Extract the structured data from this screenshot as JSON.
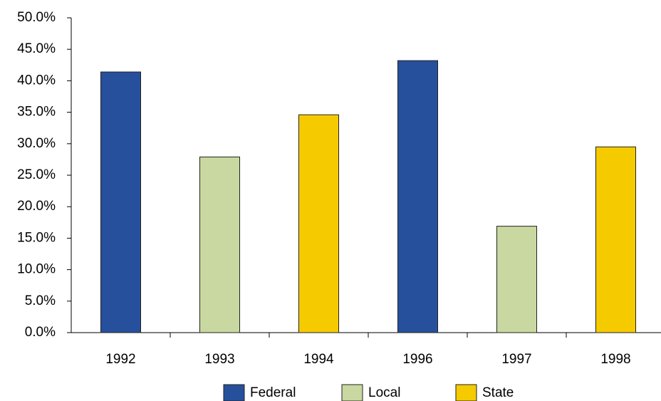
{
  "chart_data": {
    "type": "bar",
    "categories": [
      "1992",
      "1993",
      "1994",
      "1996",
      "1997",
      "1998"
    ],
    "series": [
      {
        "name": "Federal",
        "color": "#26509c",
        "values": [
          41.4,
          null,
          null,
          43.2,
          null,
          null
        ]
      },
      {
        "name": "Local",
        "color": "#c8d8a0",
        "values": [
          null,
          27.9,
          null,
          null,
          16.9,
          null
        ]
      },
      {
        "name": "State",
        "color": "#f5cb00",
        "values": [
          null,
          null,
          34.6,
          null,
          null,
          29.5
        ]
      }
    ],
    "ylim": [
      0,
      50
    ],
    "yticks": [
      {
        "value": 0,
        "label": "0.0%"
      },
      {
        "value": 5,
        "label": "5.0%"
      },
      {
        "value": 10,
        "label": "10.0%"
      },
      {
        "value": 15,
        "label": "15.0%"
      },
      {
        "value": 20,
        "label": "20.0%"
      },
      {
        "value": 25,
        "label": "25.0%"
      },
      {
        "value": 30,
        "label": "30.0%"
      },
      {
        "value": 35,
        "label": "35.0%"
      },
      {
        "value": 40,
        "label": "40.0%"
      },
      {
        "value": 45,
        "label": "45.0%"
      },
      {
        "value": 50,
        "label": "50.0%"
      }
    ],
    "grid": false,
    "legend": "bottom"
  }
}
